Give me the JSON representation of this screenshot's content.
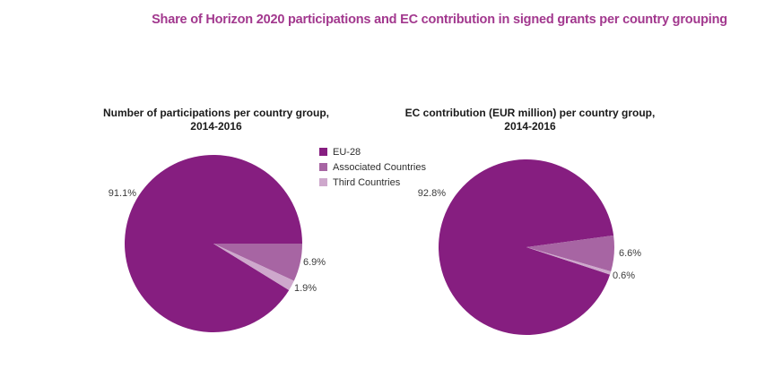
{
  "page": {
    "background_color": "#ffffff"
  },
  "header": {
    "title": "Share of Horizon 2020 participations and EC contribution in signed grants per country grouping",
    "title_color": "#A2388E"
  },
  "legend": {
    "position": "top-center-between-charts",
    "items": [
      {
        "label": "EU-28",
        "color": "#861E80"
      },
      {
        "label": "Associated Countries",
        "color": "#A765A3"
      },
      {
        "label": "Third Countries",
        "color": "#CEA8CC"
      }
    ]
  },
  "chart_data": [
    {
      "type": "pie",
      "title_line1": "Number of participations per country group,",
      "title_line2": "2014-2016",
      "categories": [
        "EU-28",
        "Associated Countries",
        "Third Countries"
      ],
      "values": [
        91.1,
        6.9,
        1.9
      ],
      "labels": [
        "91.1%",
        "6.9%",
        "1.9%"
      ],
      "start_angle_deg": 121.7,
      "grid": false
    },
    {
      "type": "pie",
      "title_line1": "EC contribution (EUR million) per country group,",
      "title_line2": "2014-2016",
      "categories": [
        "EU-28",
        "Associated Countries",
        "Third Countries"
      ],
      "values": [
        92.8,
        6.6,
        0.6
      ],
      "labels": [
        "92.8%",
        "6.6%",
        "0.6%"
      ],
      "start_angle_deg": 108.2,
      "grid": false
    }
  ]
}
